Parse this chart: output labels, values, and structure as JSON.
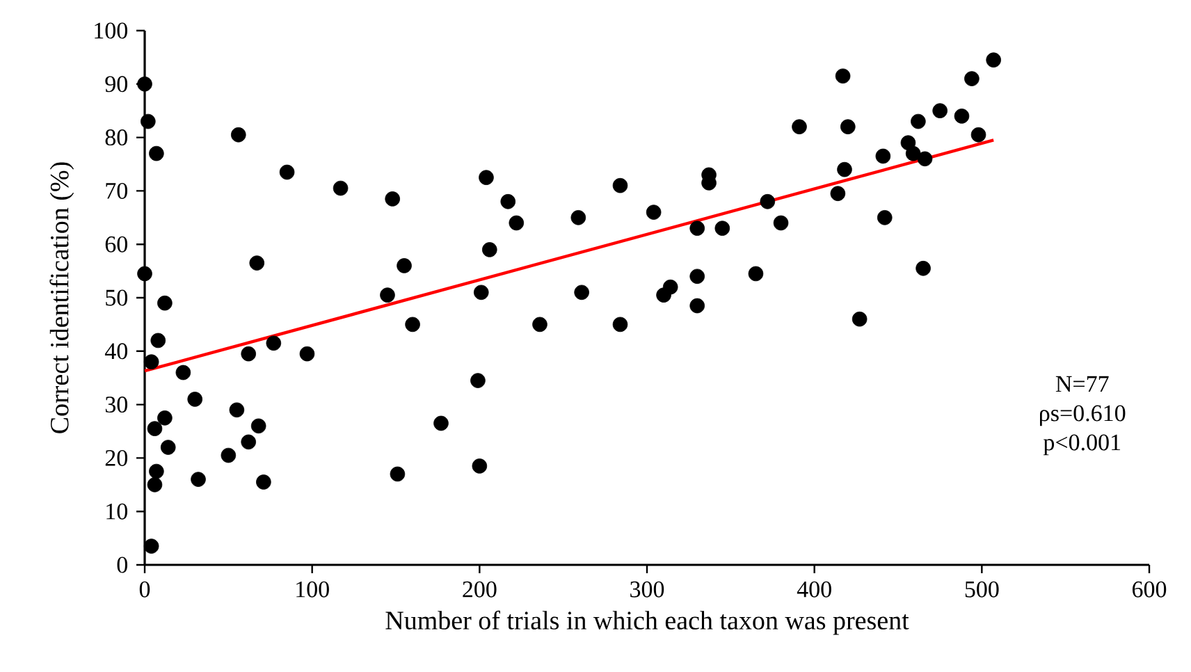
{
  "chart_data": {
    "type": "scatter",
    "xlabel": "Number of trials in which each taxon was present",
    "ylabel": "Correct identification (%)",
    "xlim": [
      0,
      600
    ],
    "ylim": [
      0,
      100
    ],
    "xticks": [
      0,
      100,
      200,
      300,
      400,
      500,
      600
    ],
    "yticks": [
      0,
      10,
      20,
      30,
      40,
      50,
      60,
      70,
      80,
      90,
      100
    ],
    "annotations": [
      "N=77",
      "ρs=0.610",
      "p<0.001"
    ],
    "series": [
      {
        "type": "scatter",
        "marker": "circle",
        "color": "#000000",
        "x": [
          0,
          2,
          7,
          0,
          12,
          8,
          4,
          23,
          30,
          6,
          12,
          14,
          7,
          6,
          4,
          32,
          50,
          55,
          62,
          68,
          71,
          56,
          85,
          67,
          62,
          77,
          97,
          117,
          148,
          145,
          155,
          160,
          151,
          177,
          199,
          200,
          201,
          204,
          206,
          217,
          222,
          236,
          259,
          261,
          284,
          284,
          304,
          310,
          314,
          330,
          330,
          330,
          337,
          337,
          345,
          365,
          372,
          380,
          391,
          414,
          417,
          420,
          418,
          427,
          441,
          442,
          456,
          459,
          462,
          466,
          465,
          475,
          488,
          494,
          498,
          507
        ],
        "values": [
          90,
          83,
          77,
          54.5,
          49,
          42,
          38,
          36,
          31,
          25.5,
          27.5,
          22,
          17.5,
          15,
          3.5,
          16,
          20.5,
          29,
          23,
          26,
          15.5,
          80.5,
          73.5,
          56.5,
          39.5,
          41.5,
          39.5,
          70.5,
          68.5,
          50.5,
          56,
          45,
          17,
          26.5,
          34.5,
          18.5,
          51,
          72.5,
          59,
          68,
          64,
          45,
          65,
          51,
          71,
          45,
          66,
          50.5,
          52,
          54,
          48.5,
          63,
          73,
          71.5,
          63,
          54.5,
          68,
          64,
          82,
          69.5,
          91.5,
          82,
          74,
          46,
          76.5,
          65,
          79,
          77,
          83,
          76,
          55.5,
          85,
          84,
          91,
          80.5,
          94.5
        ]
      },
      {
        "type": "line",
        "color": "#ff0000",
        "x": [
          0,
          507
        ],
        "values": [
          36.3,
          79.5
        ]
      }
    ]
  }
}
